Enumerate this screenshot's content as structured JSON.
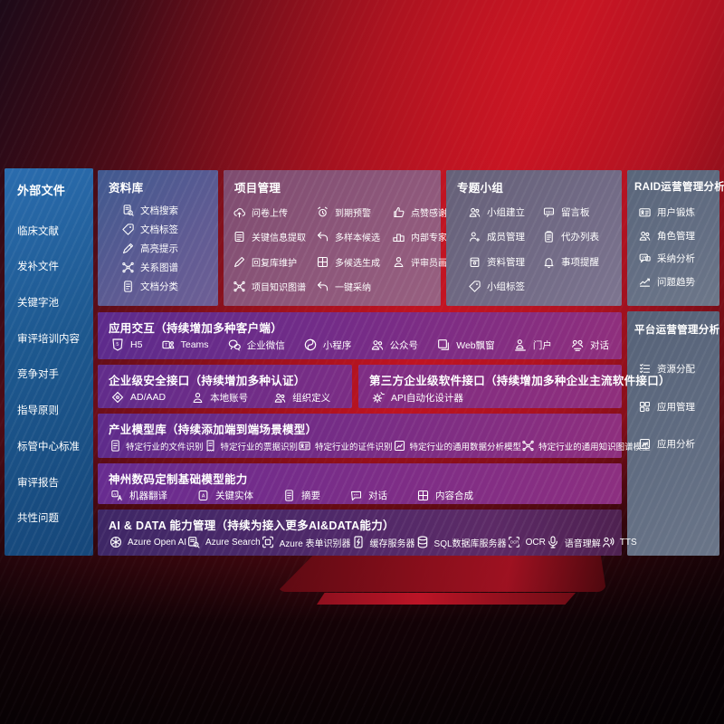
{
  "colors": {
    "accent_red": "#b91321",
    "sidebar_blue": "#1d588f",
    "panel_purple": "#7b2d85",
    "panel_slate": "#616d82"
  },
  "sidebar": {
    "title": "外部文件",
    "items": [
      "临床文献",
      "发补文件",
      "关键字池",
      "审评培训内容",
      "竞争对手",
      "指导原则",
      "标管中心标准",
      "审评报告",
      "共性问题"
    ]
  },
  "library": {
    "title": "资料库",
    "items": [
      {
        "label": "文档搜索",
        "icon": "doc-search-icon"
      },
      {
        "label": "文档标签",
        "icon": "tag-icon"
      },
      {
        "label": "高亮提示",
        "icon": "highlighter-icon"
      },
      {
        "label": "关系图谱",
        "icon": "graph-icon"
      },
      {
        "label": "文档分类",
        "icon": "doc-icon"
      }
    ]
  },
  "project": {
    "title": "项目管理",
    "items": [
      {
        "label": "问卷上传",
        "icon": "cloud-upload-icon"
      },
      {
        "label": "到期预警",
        "icon": "alarm-icon"
      },
      {
        "label": "点赞感谢",
        "icon": "thumbs-up-icon"
      },
      {
        "label": "关键信息提取",
        "icon": "doc-extract-icon"
      },
      {
        "label": "多样本候选",
        "icon": "reply-arrow-icon"
      },
      {
        "label": "内部专家排名",
        "icon": "podium-icon"
      },
      {
        "label": "回复库维护",
        "icon": "pen-icon"
      },
      {
        "label": "多候选生成",
        "icon": "grid-gen-icon"
      },
      {
        "label": "评审员画像",
        "icon": "person-icon"
      },
      {
        "label": "项目知识图谱",
        "icon": "graph-icon"
      },
      {
        "label": "一键采纳",
        "icon": "adopt-arrow-icon"
      }
    ]
  },
  "topic": {
    "title": "专题小组",
    "items": [
      {
        "label": "小组建立",
        "icon": "people-icon"
      },
      {
        "label": "留言板",
        "icon": "bbs-board-icon"
      },
      {
        "label": "成员管理",
        "icon": "person-add-icon"
      },
      {
        "label": "代办列表",
        "icon": "clipboard-icon"
      },
      {
        "label": "资料管理",
        "icon": "archive-icon"
      },
      {
        "label": "事项提醒",
        "icon": "bell-icon"
      },
      {
        "label": "小组标签",
        "icon": "tag-icon"
      }
    ]
  },
  "raid": {
    "title": "RAID运营管理分析",
    "items": [
      {
        "label": "用户锻炼",
        "icon": "id-card-icon"
      },
      {
        "label": "角色管理",
        "icon": "people-icon"
      },
      {
        "label": "采纳分析",
        "icon": "chat-analysis-icon"
      },
      {
        "label": "问题趋势",
        "icon": "trend-chart-icon"
      }
    ]
  },
  "platform": {
    "title": "平台运营管理分析",
    "items": [
      {
        "label": "资源分配",
        "icon": "checklist-icon"
      },
      {
        "label": "应用管理",
        "icon": "apps-grid-icon"
      },
      {
        "label": "应用分析",
        "icon": "chart-image-icon"
      }
    ]
  },
  "interaction": {
    "title": "应用交互（持续增加多种客户端）",
    "items": [
      {
        "label": "H5",
        "icon": "h5-icon"
      },
      {
        "label": "Teams",
        "icon": "teams-icon"
      },
      {
        "label": "企业微信",
        "icon": "wechat-work-icon"
      },
      {
        "label": "小程序",
        "icon": "mini-program-icon"
      },
      {
        "label": "公众号",
        "icon": "official-account-icon"
      },
      {
        "label": "Web飘窗",
        "icon": "web-window-icon"
      },
      {
        "label": "门户",
        "icon": "portal-icon"
      },
      {
        "label": "对话",
        "icon": "dialog-icon"
      }
    ]
  },
  "security": {
    "title": "企业级安全接口（持续增加多种认证）",
    "items": [
      {
        "label": "AD/AAD",
        "icon": "ad-diamond-icon"
      },
      {
        "label": "本地账号",
        "icon": "local-account-icon"
      },
      {
        "label": "组织定义",
        "icon": "org-icon"
      }
    ]
  },
  "thirdparty": {
    "title": "第三方企业级软件接口（持续增加多种企业主流软件接口）",
    "items": [
      {
        "label": "API自动化设计器",
        "icon": "api-gear-icon"
      }
    ]
  },
  "industry": {
    "title": "产业模型库（持续添加端到端场景模型）",
    "items": [
      {
        "label": "特定行业的文件识别",
        "icon": "doc-icon"
      },
      {
        "label": "特定行业的票据识别",
        "icon": "receipt-icon"
      },
      {
        "label": "特定行业的证件识别",
        "icon": "id-card-icon"
      },
      {
        "label": "特定行业的通用数据分析模型",
        "icon": "chart-image-icon"
      },
      {
        "label": "特定行业的通用知识图谱模型",
        "icon": "graph-icon"
      }
    ]
  },
  "basemodel": {
    "title": "神州数码定制基础模型能力",
    "items": [
      {
        "label": "机器翻译",
        "icon": "translate-icon"
      },
      {
        "label": "关键实体",
        "icon": "entity-a-icon"
      },
      {
        "label": "摘要",
        "icon": "summary-doc-icon"
      },
      {
        "label": "对话",
        "icon": "chat-dots-icon"
      },
      {
        "label": "内容合成",
        "icon": "compose-grid-icon"
      }
    ]
  },
  "aidata": {
    "title": "AI & DATA 能力管理（持续为接入更多AI&DATA能力）",
    "items": [
      {
        "label": "Azure Open AI",
        "icon": "openai-icon"
      },
      {
        "label": "Azure Search",
        "icon": "azure-search-icon"
      },
      {
        "label": "Azure 表单识别器",
        "icon": "form-recognizer-icon"
      },
      {
        "label": "缓存服务器",
        "icon": "cache-server-icon"
      },
      {
        "label": "SQL数据库服务器",
        "icon": "database-icon"
      },
      {
        "label": "OCR",
        "icon": "ocr-icon"
      },
      {
        "label": "语音理解",
        "icon": "speech-icon"
      },
      {
        "label": "TTS",
        "icon": "tts-icon"
      }
    ]
  }
}
